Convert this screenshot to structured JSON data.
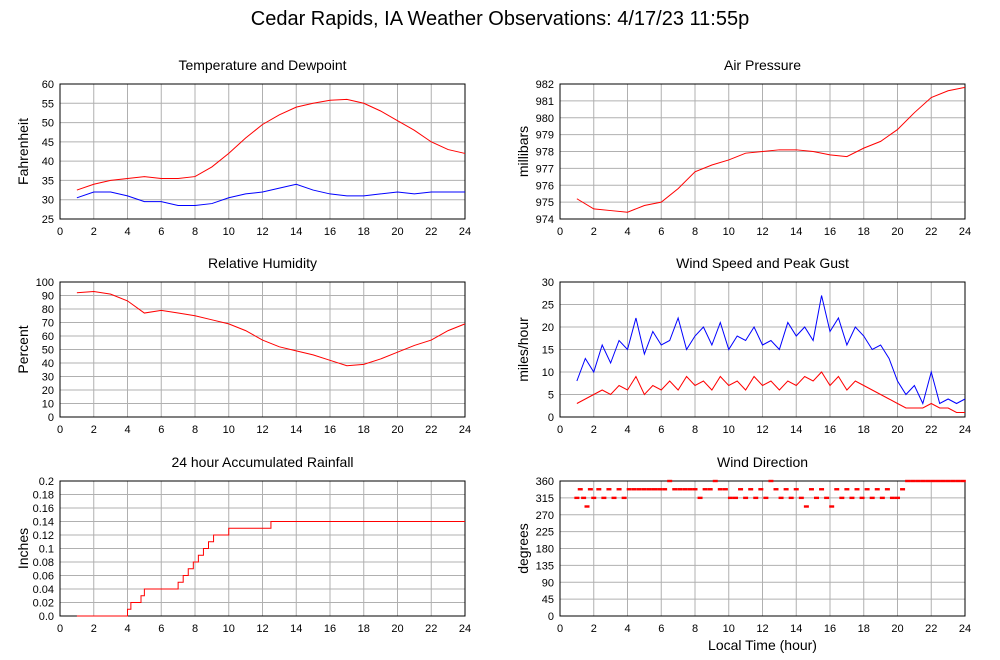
{
  "page": {
    "title": "Cedar Rapids, IA Weather Observations: 4/17/23 11:55p"
  },
  "colors": {
    "primary": "#ff0000",
    "secondary": "#0000ff",
    "grid": "#b0b0b0"
  },
  "chart_data": [
    {
      "id": "temp",
      "type": "line",
      "title": "Temperature and Dewpoint",
      "ylabel": "Fahrenheit",
      "xlabel": "",
      "xlim": [
        0,
        24
      ],
      "ylim": [
        25,
        60
      ],
      "xticks": [
        0,
        2,
        4,
        6,
        8,
        10,
        12,
        14,
        16,
        18,
        20,
        22,
        24
      ],
      "yticks": [
        25,
        30,
        35,
        40,
        45,
        50,
        55,
        60
      ],
      "grid": true,
      "series": [
        {
          "color": "#ff0000",
          "x": [
            1,
            2,
            3,
            4,
            5,
            6,
            7,
            8,
            9,
            10,
            11,
            12,
            13,
            14,
            15,
            16,
            17,
            18,
            19,
            20,
            21,
            22,
            23,
            24
          ],
          "y": [
            32.5,
            34,
            35,
            35.5,
            36,
            35.5,
            35.5,
            36,
            38.5,
            42,
            46,
            49.5,
            52,
            54,
            55,
            55.8,
            56,
            55,
            53,
            50.5,
            48,
            45,
            43,
            42
          ]
        },
        {
          "color": "#0000ff",
          "x": [
            1,
            2,
            3,
            4,
            5,
            6,
            7,
            8,
            9,
            10,
            11,
            12,
            13,
            14,
            15,
            16,
            17,
            18,
            19,
            20,
            21,
            22,
            23,
            24
          ],
          "y": [
            30.5,
            32,
            32,
            31,
            29.5,
            29.5,
            28.5,
            28.5,
            29,
            30.5,
            31.5,
            32,
            33,
            34,
            32.5,
            31.5,
            31,
            31,
            31.5,
            32,
            31.5,
            32,
            32,
            32
          ]
        }
      ]
    },
    {
      "id": "pressure",
      "type": "line",
      "title": "Air Pressure",
      "ylabel": "millibars",
      "xlabel": "",
      "xlim": [
        0,
        24
      ],
      "ylim": [
        974,
        982
      ],
      "xticks": [
        0,
        2,
        4,
        6,
        8,
        10,
        12,
        14,
        16,
        18,
        20,
        22,
        24
      ],
      "yticks": [
        974,
        975,
        976,
        977,
        978,
        979,
        980,
        981,
        982
      ],
      "grid": true,
      "series": [
        {
          "color": "#ff0000",
          "x": [
            1,
            2,
            3,
            4,
            5,
            6,
            7,
            8,
            9,
            10,
            11,
            12,
            13,
            14,
            15,
            16,
            17,
            18,
            19,
            20,
            21,
            22,
            23,
            24
          ],
          "y": [
            975.2,
            974.6,
            974.5,
            974.4,
            974.8,
            975,
            975.8,
            976.8,
            977.2,
            977.5,
            977.9,
            978,
            978.1,
            978.1,
            978,
            977.8,
            977.7,
            978.2,
            978.6,
            979.3,
            980.3,
            981.2,
            981.6,
            981.8
          ]
        }
      ]
    },
    {
      "id": "rh",
      "type": "line",
      "title": "Relative Humidity",
      "ylabel": "Percent",
      "xlabel": "",
      "xlim": [
        0,
        24
      ],
      "ylim": [
        0,
        100
      ],
      "xticks": [
        0,
        2,
        4,
        6,
        8,
        10,
        12,
        14,
        16,
        18,
        20,
        22,
        24
      ],
      "yticks": [
        0,
        10,
        20,
        30,
        40,
        50,
        60,
        70,
        80,
        90,
        100
      ],
      "grid": true,
      "series": [
        {
          "color": "#ff0000",
          "x": [
            1,
            2,
            3,
            4,
            5,
            6,
            7,
            8,
            9,
            10,
            11,
            12,
            13,
            14,
            15,
            16,
            17,
            18,
            19,
            20,
            21,
            22,
            23,
            24
          ],
          "y": [
            92,
            93,
            91,
            86,
            77,
            79,
            77,
            75,
            72,
            69,
            64,
            57,
            52,
            49,
            46,
            42,
            38,
            39,
            43,
            48,
            53,
            57,
            64,
            69
          ]
        }
      ]
    },
    {
      "id": "wind",
      "type": "line",
      "title": "Wind Speed and Peak Gust",
      "ylabel": "miles/hour",
      "xlabel": "",
      "xlim": [
        0,
        24
      ],
      "ylim": [
        0,
        30
      ],
      "xticks": [
        0,
        2,
        4,
        6,
        8,
        10,
        12,
        14,
        16,
        18,
        20,
        22,
        24
      ],
      "yticks": [
        0,
        5,
        10,
        15,
        20,
        25,
        30
      ],
      "grid": true,
      "series": [
        {
          "color": "#0000ff",
          "x": [
            1,
            1.5,
            2,
            2.5,
            3,
            3.5,
            4,
            4.5,
            5,
            5.5,
            6,
            6.5,
            7,
            7.5,
            8,
            8.5,
            9,
            9.5,
            10,
            10.5,
            11,
            11.5,
            12,
            12.5,
            13,
            13.5,
            14,
            14.5,
            15,
            15.5,
            16,
            16.5,
            17,
            17.5,
            18,
            18.5,
            19,
            19.5,
            20,
            20.5,
            21,
            21.5,
            22,
            22.5,
            23,
            23.5,
            24
          ],
          "y": [
            8,
            13,
            10,
            16,
            12,
            17,
            15,
            22,
            14,
            19,
            16,
            17,
            22,
            15,
            18,
            20,
            16,
            21,
            15,
            18,
            17,
            20,
            16,
            17,
            15,
            21,
            18,
            20,
            17,
            27,
            19,
            22,
            16,
            20,
            18,
            15,
            16,
            13,
            8,
            5,
            7,
            3,
            10,
            3,
            4,
            3,
            4
          ]
        },
        {
          "color": "#ff0000",
          "x": [
            1,
            1.5,
            2,
            2.5,
            3,
            3.5,
            4,
            4.5,
            5,
            5.5,
            6,
            6.5,
            7,
            7.5,
            8,
            8.5,
            9,
            9.5,
            10,
            10.5,
            11,
            11.5,
            12,
            12.5,
            13,
            13.5,
            14,
            14.5,
            15,
            15.5,
            16,
            16.5,
            17,
            17.5,
            18,
            18.5,
            19,
            19.5,
            20,
            20.5,
            21,
            21.5,
            22,
            22.5,
            23,
            23.5,
            24
          ],
          "y": [
            3,
            4,
            5,
            6,
            5,
            7,
            6,
            9,
            5,
            7,
            6,
            8,
            6,
            9,
            7,
            8,
            6,
            9,
            7,
            8,
            6,
            9,
            7,
            8,
            6,
            8,
            7,
            9,
            8,
            10,
            7,
            9,
            6,
            8,
            7,
            6,
            5,
            4,
            3,
            2,
            2,
            2,
            3,
            2,
            2,
            1,
            1
          ]
        }
      ]
    },
    {
      "id": "rain",
      "type": "line",
      "title": "24 hour Accumulated Rainfall",
      "ylabel": "Inches",
      "xlabel": "",
      "xlim": [
        0,
        24
      ],
      "ylim": [
        0,
        0.2
      ],
      "xticks": [
        0,
        2,
        4,
        6,
        8,
        10,
        12,
        14,
        16,
        18,
        20,
        22,
        24
      ],
      "yticks": [
        0.0,
        0.02,
        0.04,
        0.06,
        0.08,
        0.1,
        0.12,
        0.14,
        0.16,
        0.18,
        0.2
      ],
      "ytick_labels": [
        "0.0",
        "0.02",
        "0.04",
        "0.06",
        "0.08",
        "0.1",
        "0.12",
        "0.14",
        "0.16",
        "0.18",
        "0.2"
      ],
      "grid": true,
      "step": true,
      "series": [
        {
          "color": "#ff0000",
          "x": [
            1,
            3.9,
            4.0,
            4.2,
            4.5,
            4.8,
            5.0,
            5.5,
            6.0,
            7.0,
            7.3,
            7.6,
            7.9,
            8.2,
            8.5,
            8.8,
            9.1,
            9.5,
            10.0,
            10.3,
            12.3,
            12.5,
            24
          ],
          "y": [
            0,
            0,
            0.01,
            0.02,
            0.02,
            0.03,
            0.04,
            0.04,
            0.04,
            0.05,
            0.06,
            0.07,
            0.08,
            0.09,
            0.1,
            0.11,
            0.12,
            0.12,
            0.13,
            0.13,
            0.13,
            0.14,
            0.14
          ]
        }
      ]
    },
    {
      "id": "direction",
      "type": "scatter",
      "title": "Wind Direction",
      "ylabel": "degrees",
      "xlabel": "Local Time (hour)",
      "xlim": [
        0,
        24
      ],
      "ylim": [
        0,
        360
      ],
      "xticks": [
        0,
        2,
        4,
        6,
        8,
        10,
        12,
        14,
        16,
        18,
        20,
        22,
        24
      ],
      "yticks": [
        0,
        45,
        90,
        135,
        180,
        225,
        270,
        315,
        360
      ],
      "grid": true,
      "series": [
        {
          "color": "#ff0000",
          "x": [
            1.0,
            1.2,
            1.4,
            1.6,
            1.8,
            2.0,
            2.3,
            2.6,
            2.9,
            3.2,
            3.5,
            3.8,
            4.1,
            4.4,
            4.7,
            5.0,
            5.3,
            5.6,
            5.9,
            6.2,
            6.5,
            6.8,
            7.1,
            7.4,
            7.7,
            8.0,
            8.3,
            8.6,
            8.9,
            9.2,
            9.5,
            9.8,
            10.1,
            10.4,
            10.7,
            11.0,
            11.3,
            11.6,
            11.9,
            12.2,
            12.5,
            12.8,
            13.1,
            13.4,
            13.7,
            14.0,
            14.3,
            14.6,
            14.9,
            15.2,
            15.5,
            15.8,
            16.1,
            16.4,
            16.7,
            17.0,
            17.3,
            17.6,
            17.9,
            18.2,
            18.5,
            18.8,
            19.1,
            19.4,
            19.7,
            20.0,
            20.3,
            20.6,
            20.9,
            21.2,
            21.5,
            21.8,
            22.1,
            22.4,
            22.7,
            23.0,
            23.3,
            23.6,
            23.9
          ],
          "y": [
            315,
            338,
            315,
            292,
            338,
            315,
            338,
            315,
            338,
            315,
            338,
            315,
            338,
            338,
            338,
            338,
            338,
            338,
            338,
            338,
            360,
            338,
            338,
            338,
            338,
            338,
            315,
            338,
            338,
            360,
            338,
            338,
            315,
            315,
            338,
            315,
            338,
            315,
            338,
            315,
            360,
            338,
            315,
            338,
            315,
            338,
            315,
            292,
            338,
            315,
            338,
            315,
            292,
            338,
            315,
            338,
            315,
            338,
            315,
            338,
            315,
            338,
            315,
            338,
            315,
            315,
            338,
            360,
            360,
            360,
            360,
            360,
            360,
            360,
            360,
            360,
            360,
            360,
            360
          ]
        }
      ]
    }
  ]
}
